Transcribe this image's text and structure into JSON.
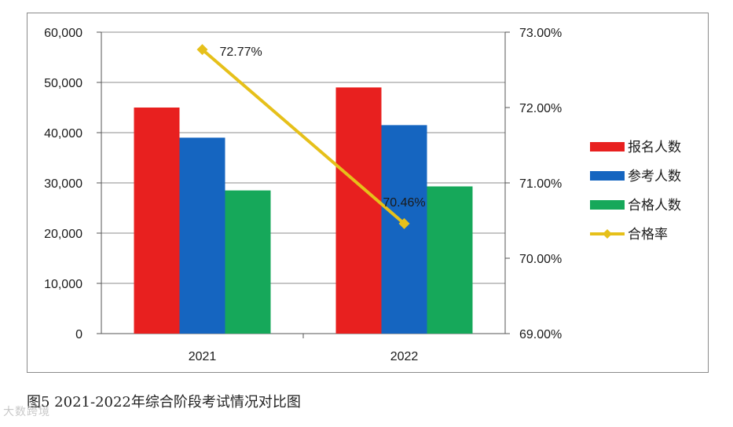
{
  "chart_data": {
    "type": "bar",
    "categories": [
      "2021",
      "2022"
    ],
    "series": [
      {
        "name": "报名人数",
        "values": [
          45000,
          49000
        ],
        "color": "#e8201f",
        "kind": "bar"
      },
      {
        "name": "参考人数",
        "values": [
          39000,
          41500
        ],
        "color": "#1565c0",
        "kind": "bar"
      },
      {
        "name": "合格人数",
        "values": [
          28500,
          29300
        ],
        "color": "#16a85a",
        "kind": "bar"
      },
      {
        "name": "合格率",
        "values": [
          72.77,
          70.46
        ],
        "color": "#e6c01a",
        "kind": "line",
        "axis": "right"
      }
    ],
    "data_labels": [
      "72.77%",
      "70.46%"
    ],
    "left_axis": {
      "ylim": [
        0,
        60000
      ],
      "ticks": [
        "0",
        "10,000",
        "20,000",
        "30,000",
        "40,000",
        "50,000",
        "60,000"
      ]
    },
    "right_axis": {
      "ylim": [
        69,
        73
      ],
      "ticks": [
        "69.00%",
        "70.00%",
        "71.00%",
        "72.00%",
        "73.00%"
      ]
    },
    "grid": true,
    "legend_position": "right"
  },
  "caption": "图5  2021-2022年综合阶段考试情况对比图",
  "watermark": "大数跨境"
}
